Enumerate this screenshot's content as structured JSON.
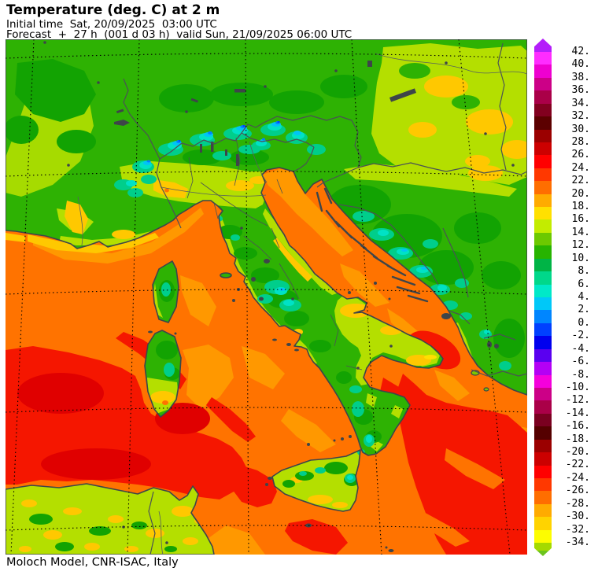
{
  "header": {
    "title": "Temperature (deg. C) at 2 m",
    "initial_time_line": "Initial time  Sat, 20/09/2025  03:00 UTC",
    "forecast_line": "Forecast  +  27 h  (001 d 03 h)  valid Sun, 21/09/2025 06:00 UTC"
  },
  "footer": {
    "credit": "Moloch Model, CNR-ISAC, Italy"
  },
  "colorbar": {
    "labels": [
      "42.",
      "40.",
      "38.",
      "36.",
      "34.",
      "32.",
      "30.",
      "28.",
      "26.",
      "24.",
      "22.",
      "20.",
      "18.",
      "16.",
      "14.",
      "12.",
      "10.",
      "8.",
      "6.",
      "4.",
      "2.",
      "0.",
      "-2.",
      "-4.",
      "-6.",
      "-8.",
      "-10.",
      "-12.",
      "-14.",
      "-16.",
      "-18.",
      "-20.",
      "-22.",
      "-24.",
      "-26.",
      "-28.",
      "-30.",
      "-32.",
      "-34."
    ],
    "segment_colors": [
      "#ff2cff",
      "#ee00d0",
      "#cc0087",
      "#aa0048",
      "#82001f",
      "#5c0000",
      "#9b0000",
      "#cc0000",
      "#ff0000",
      "#ff3800",
      "#ff6e00",
      "#ffab00",
      "#ffe000",
      "#c3ec00",
      "#6cc900",
      "#27b400",
      "#00b446",
      "#00d88a",
      "#00e9c8",
      "#00c8f8",
      "#0086ff",
      "#0040ff",
      "#0000ee",
      "#5a00f0",
      "#b400f5",
      "#f500dc",
      "#cc0087",
      "#aa0048",
      "#7a0020",
      "#550000",
      "#9b0000",
      "#cc0000",
      "#ff0000",
      "#ff3800",
      "#ff6e00",
      "#ffab00",
      "#ffd300",
      "#fdfd00"
    ],
    "arrow_top_color": "#b41efa",
    "arrow_bottom_color": "#a4da00",
    "arrow_bottom_tip_color": "#6cc41e"
  },
  "map": {
    "region": "Italy and central Mediterranean",
    "palette": {
      "sea_warm_orange": "#ff7300",
      "sea_mild_orange": "#ff9800",
      "sea_hot_red": "#f51600",
      "sea_hottest_red": "#e00000",
      "coast_yellow_band": "#ffc800",
      "land_green": "#2eb203",
      "land_dark_green": "#12a302",
      "land_yellow_green": "#b4df00",
      "land_gold": "#ffc800",
      "mountain_teal": "#00ce8b",
      "mountain_turquoise": "#00e2c6",
      "alpine_cyan": "#00c4f6",
      "alpine_azure": "#0082ff",
      "alpine_blue": "#0040ff",
      "coastline": "#3e4549",
      "grid": "#000000"
    }
  }
}
